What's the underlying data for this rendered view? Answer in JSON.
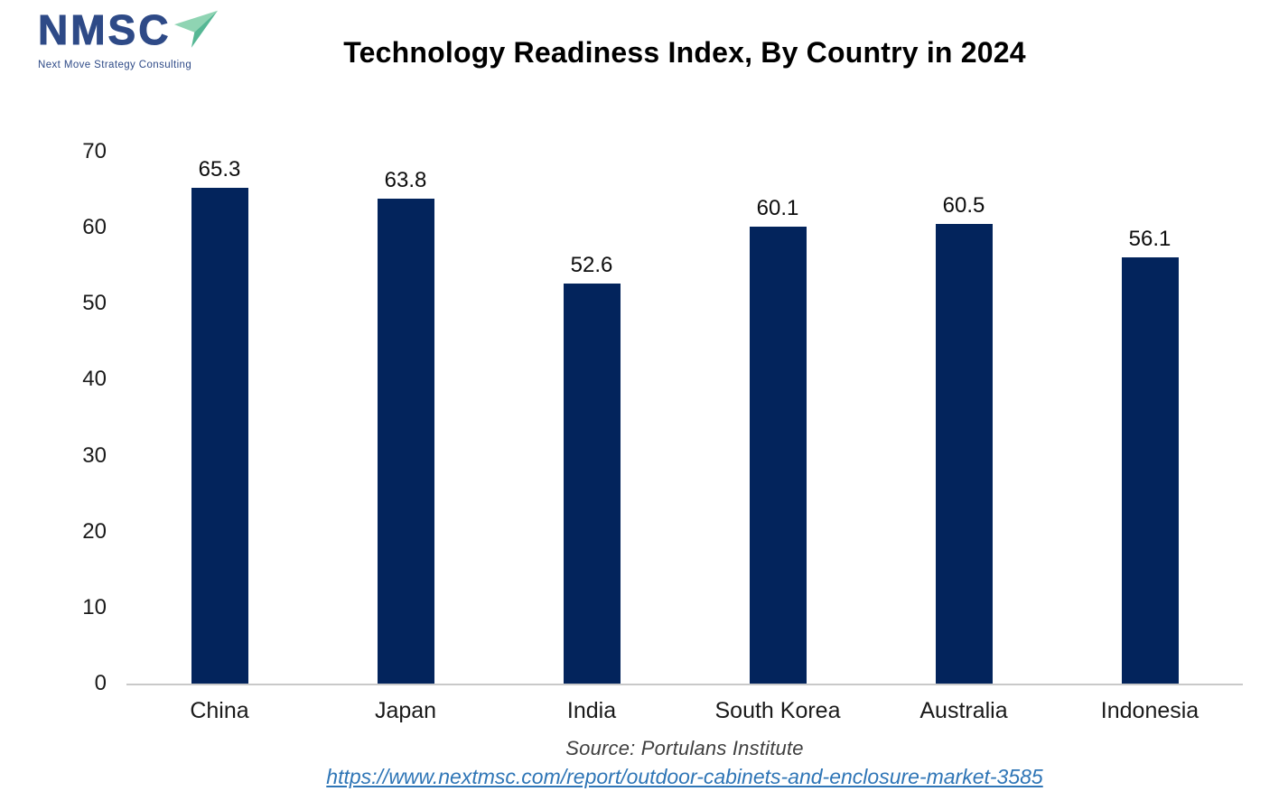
{
  "logo": {
    "text": "NMSC",
    "tagline": "Next Move Strategy Consulting",
    "navy": "#2e4a87",
    "green_light": "#8fd4b3",
    "green_dark": "#55b794"
  },
  "title": "Technology Readiness Index, By Country in 2024",
  "chart_data": {
    "type": "bar",
    "title": "Technology Readiness Index, By Country in 2024",
    "categories": [
      "China",
      "Japan",
      "India",
      "South Korea",
      "Australia",
      "Indonesia"
    ],
    "values": [
      65.3,
      63.8,
      52.6,
      60.1,
      60.5,
      56.1
    ],
    "data_labels": [
      "65.3",
      "63.8",
      "52.6",
      "60.1",
      "60.5",
      "56.1"
    ],
    "xlabel": "",
    "ylabel": "",
    "ylim": [
      0,
      70
    ],
    "yticks": [
      0,
      10,
      20,
      30,
      40,
      50,
      60,
      70
    ],
    "grid": false,
    "legend": false,
    "bar_color": "#03245c"
  },
  "footer": {
    "source": "Source: Portulans Institute",
    "link": "https://www.nextmsc.com/report/outdoor-cabinets-and-enclosure-market-3585",
    "link_color": "#2e75b6"
  }
}
